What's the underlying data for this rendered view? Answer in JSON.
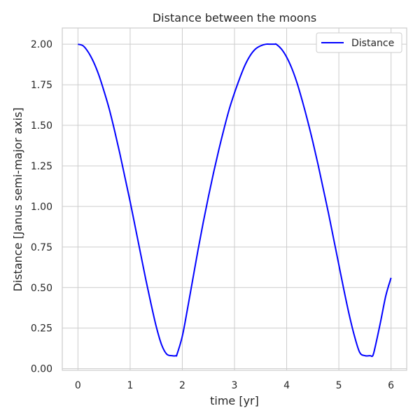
{
  "chart_data": {
    "type": "line",
    "title": "Distance between the moons",
    "xlabel": "time [yr]",
    "ylabel": "Distance [Janus semi-major axis]",
    "xlim": [
      -0.3,
      6.3
    ],
    "ylim": [
      -0.01,
      2.1
    ],
    "xticks": [
      0,
      1,
      2,
      3,
      4,
      5,
      6
    ],
    "xtick_labels": [
      "0",
      "1",
      "2",
      "3",
      "4",
      "5",
      "6"
    ],
    "yticks": [
      0.0,
      0.25,
      0.5,
      0.75,
      1.0,
      1.25,
      1.5,
      1.75,
      2.0
    ],
    "ytick_labels": [
      "0.00",
      "0.25",
      "0.50",
      "0.75",
      "1.00",
      "1.25",
      "1.50",
      "1.75",
      "2.00"
    ],
    "grid": true,
    "legend_position": "top-right",
    "series": [
      {
        "name": "Distance",
        "color": "#0000ff",
        "x": [
          0,
          0.1,
          0.2,
          0.3,
          0.4,
          0.5,
          0.6,
          0.7,
          0.8,
          0.9,
          1.0,
          1.1,
          1.2,
          1.3,
          1.4,
          1.5,
          1.6,
          1.7,
          1.8,
          1.88,
          1.9,
          2.0,
          2.1,
          2.2,
          2.3,
          2.4,
          2.5,
          2.6,
          2.7,
          2.8,
          2.9,
          3.0,
          3.1,
          3.2,
          3.3,
          3.4,
          3.5,
          3.6,
          3.7,
          3.77,
          3.8,
          3.9,
          4.0,
          4.1,
          4.2,
          4.3,
          4.4,
          4.5,
          4.6,
          4.7,
          4.8,
          4.9,
          5.0,
          5.1,
          5.2,
          5.3,
          5.4,
          5.5,
          5.6,
          5.65,
          5.7,
          5.8,
          5.9,
          6.0
        ],
        "y": [
          2.0,
          1.99,
          1.95,
          1.89,
          1.81,
          1.71,
          1.6,
          1.47,
          1.33,
          1.18,
          1.03,
          0.87,
          0.71,
          0.55,
          0.4,
          0.26,
          0.15,
          0.09,
          0.08,
          0.08,
          0.09,
          0.2,
          0.37,
          0.55,
          0.73,
          0.9,
          1.06,
          1.21,
          1.35,
          1.48,
          1.6,
          1.7,
          1.79,
          1.87,
          1.93,
          1.97,
          1.99,
          2.0,
          2.0,
          2.0,
          2.0,
          1.97,
          1.92,
          1.85,
          1.76,
          1.65,
          1.53,
          1.4,
          1.26,
          1.11,
          0.96,
          0.8,
          0.64,
          0.48,
          0.33,
          0.2,
          0.1,
          0.08,
          0.08,
          0.08,
          0.14,
          0.29,
          0.45,
          0.56
        ]
      }
    ]
  }
}
